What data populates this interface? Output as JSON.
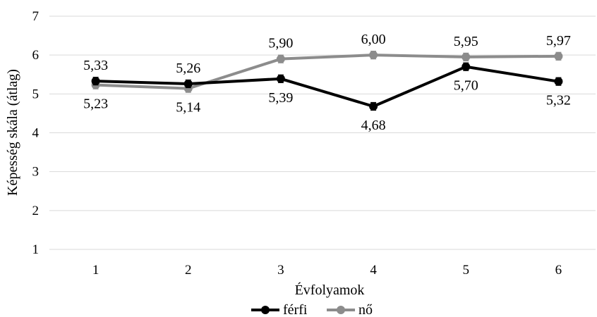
{
  "chart_data": {
    "type": "line",
    "title": "",
    "xlabel": "Évfolyamok",
    "ylabel": "Képesség skála (átlag)",
    "categories": [
      "1",
      "2",
      "3",
      "4",
      "5",
      "6"
    ],
    "ylim": [
      1,
      7
    ],
    "yticks": [
      "1",
      "2",
      "3",
      "4",
      "5",
      "6",
      "7"
    ],
    "grid": true,
    "error_bars": true,
    "legend_position": "bottom",
    "series": [
      {
        "name": "férfi",
        "color": "#000000",
        "values": [
          5.33,
          5.26,
          5.39,
          4.68,
          5.7,
          5.32
        ],
        "labels": [
          "5,33",
          "5,26",
          "5,39",
          "4,68",
          "5,70",
          "5,32"
        ],
        "label_positions": [
          "above",
          "above",
          "below",
          "below",
          "below",
          "below"
        ]
      },
      {
        "name": "nő",
        "color": "#8c8c8c",
        "values": [
          5.23,
          5.14,
          5.9,
          6.0,
          5.95,
          5.97
        ],
        "labels": [
          "5,23",
          "5,14",
          "5,90",
          "6,00",
          "5,95",
          "5,97"
        ],
        "label_positions": [
          "below",
          "below",
          "above",
          "above",
          "above",
          "above"
        ]
      }
    ]
  }
}
